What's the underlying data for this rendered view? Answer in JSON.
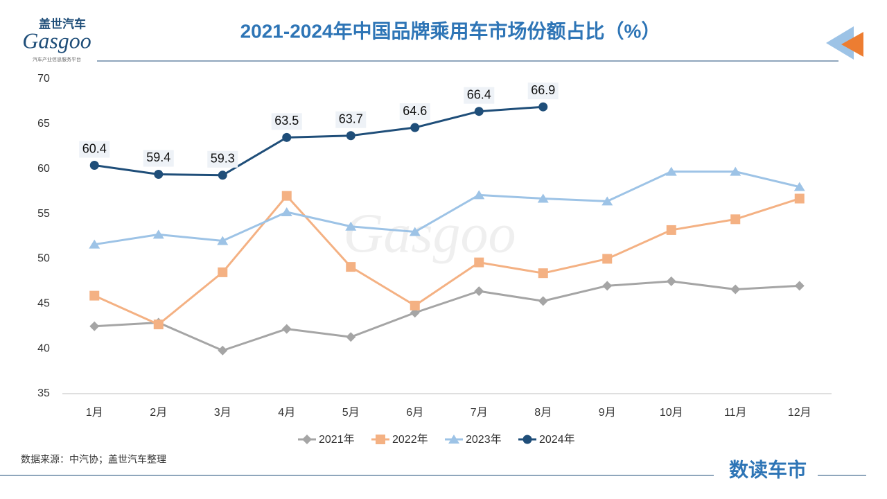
{
  "logo": {
    "name": "盖世汽车",
    "brand": "Gasgoo",
    "tagline": "汽车产业信息服务平台"
  },
  "source": "数据来源：中汽协；盖世汽车整理",
  "footer": "数读车市",
  "chart_data": {
    "type": "line",
    "title": "2021-2024年中国品牌乘用车市场份额占比（%）",
    "categories": [
      "1月",
      "2月",
      "3月",
      "4月",
      "5月",
      "6月",
      "7月",
      "8月",
      "9月",
      "10月",
      "11月",
      "12月"
    ],
    "series": [
      {
        "name": "2021年",
        "color": "#a5a5a5",
        "marker": "diamond",
        "values": [
          42.5,
          42.9,
          39.8,
          42.2,
          41.3,
          44.0,
          46.4,
          45.3,
          47.0,
          47.5,
          46.6,
          47.0
        ]
      },
      {
        "name": "2022年",
        "color": "#f4b183",
        "marker": "square",
        "values": [
          45.9,
          42.7,
          48.5,
          57.0,
          49.1,
          44.8,
          49.6,
          48.4,
          50.0,
          53.2,
          54.4,
          56.7
        ]
      },
      {
        "name": "2023年",
        "color": "#9dc3e6",
        "marker": "triangle",
        "values": [
          51.6,
          52.7,
          52.0,
          55.2,
          53.6,
          53.0,
          57.1,
          56.7,
          56.4,
          59.7,
          59.7,
          58.0
        ]
      },
      {
        "name": "2024年",
        "color": "#1f4e79",
        "marker": "circle",
        "data_labels": true,
        "values": [
          60.4,
          59.4,
          59.3,
          63.5,
          63.7,
          64.6,
          66.4,
          66.9,
          null,
          null,
          null,
          null
        ]
      }
    ],
    "ylim": [
      35,
      70
    ],
    "yticks": [
      35,
      40,
      45,
      50,
      55,
      60,
      65,
      70
    ],
    "grid": false,
    "legend": "bottom"
  }
}
